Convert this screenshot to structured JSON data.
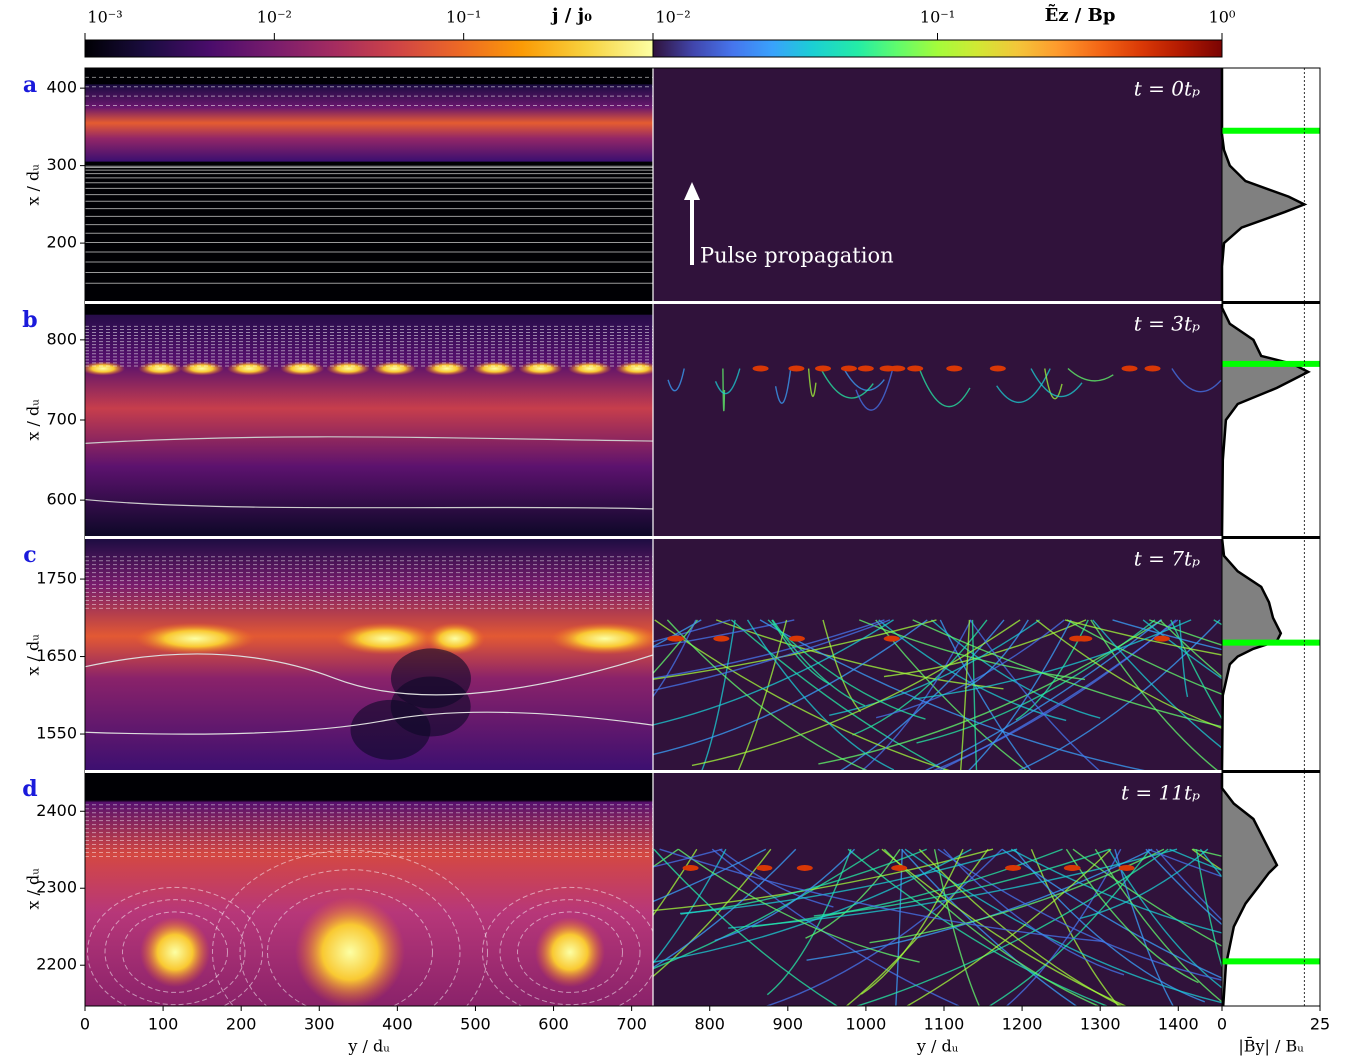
{
  "chart_data": {
    "type": "profile-panels",
    "colorbars": [
      {
        "label": "j / j₀",
        "log": true,
        "lim": [
          0.001,
          1
        ],
        "ticks": [
          {
            "value": 0.001,
            "label": "10⁻³"
          },
          {
            "value": 0.01,
            "label": "10⁻²"
          },
          {
            "value": 0.1,
            "label": "10⁻¹"
          }
        ]
      },
      {
        "label": "Ẽz / Bp",
        "log": true,
        "lim": [
          0.01,
          1
        ],
        "ticks": [
          {
            "value": 0.01,
            "label": "10⁻²"
          },
          {
            "value": 0.1,
            "label": "10⁻¹"
          },
          {
            "value": 1,
            "label": "10⁰"
          }
        ]
      }
    ],
    "xlabels": [
      "y / dᵤ",
      "y / dᵤ"
    ],
    "xlim": [
      0,
      1456
    ],
    "xticks": [
      0,
      100,
      200,
      300,
      400,
      500,
      600,
      700,
      800,
      900,
      1000,
      1100,
      1200,
      1300,
      1400
    ],
    "ylabel": "x / dᵤ",
    "profile_xlabel": "|B̄y| / Bᵤ",
    "profile_xlim": [
      0,
      25
    ],
    "profile_xticks": [
      0,
      25
    ],
    "profile_ref": 21,
    "front_color": "#00ff00",
    "annotation": "Pulse propagation",
    "panels": [
      {
        "label": "a",
        "time": "t = 0tₚ",
        "ylim": [
          124,
          426
        ],
        "yticks": [
          200,
          300,
          400
        ],
        "front": 345,
        "profile": {
          "x": [
            124,
            170,
            200,
            220,
            240,
            250,
            260,
            280,
            300,
            320,
            340,
            426
          ],
          "values": [
            0,
            0,
            0.5,
            5,
            16,
            21,
            17,
            6,
            2,
            0.5,
            0,
            0
          ]
        }
      },
      {
        "label": "b",
        "time": "t = 3tₚ",
        "ylim": [
          554,
          846
        ],
        "yticks": [
          600,
          700,
          800
        ],
        "front": 770,
        "profile": {
          "x": [
            554,
            650,
            700,
            720,
            740,
            760,
            770,
            780,
            790,
            800,
            820,
            840,
            846
          ],
          "values": [
            0,
            0.2,
            1,
            4,
            14,
            22,
            18,
            10,
            9,
            8,
            2,
            0,
            0
          ]
        }
      },
      {
        "label": "c",
        "time": "t = 7tₚ",
        "ylim": [
          1501,
          1803
        ],
        "yticks": [
          1550,
          1650,
          1750
        ],
        "front": 1668,
        "profile": {
          "x": [
            1501,
            1600,
            1640,
            1650,
            1660,
            1670,
            1680,
            1700,
            1720,
            1740,
            1760,
            1780,
            1803
          ],
          "values": [
            0,
            0.2,
            2,
            4,
            8,
            14,
            15,
            13,
            12,
            10,
            4,
            0.5,
            0
          ]
        }
      },
      {
        "label": "d",
        "time": "t = 11tₚ",
        "ylim": [
          2147,
          2451
        ],
        "yticks": [
          2200,
          2300,
          2400
        ],
        "front": 2205,
        "profile": {
          "x": [
            2147,
            2200,
            2250,
            2280,
            2300,
            2320,
            2330,
            2350,
            2370,
            2390,
            2410,
            2430,
            2451
          ],
          "values": [
            0.3,
            1,
            3,
            6,
            9,
            12,
            14,
            12,
            10,
            8,
            3,
            0,
            0
          ]
        }
      }
    ]
  }
}
